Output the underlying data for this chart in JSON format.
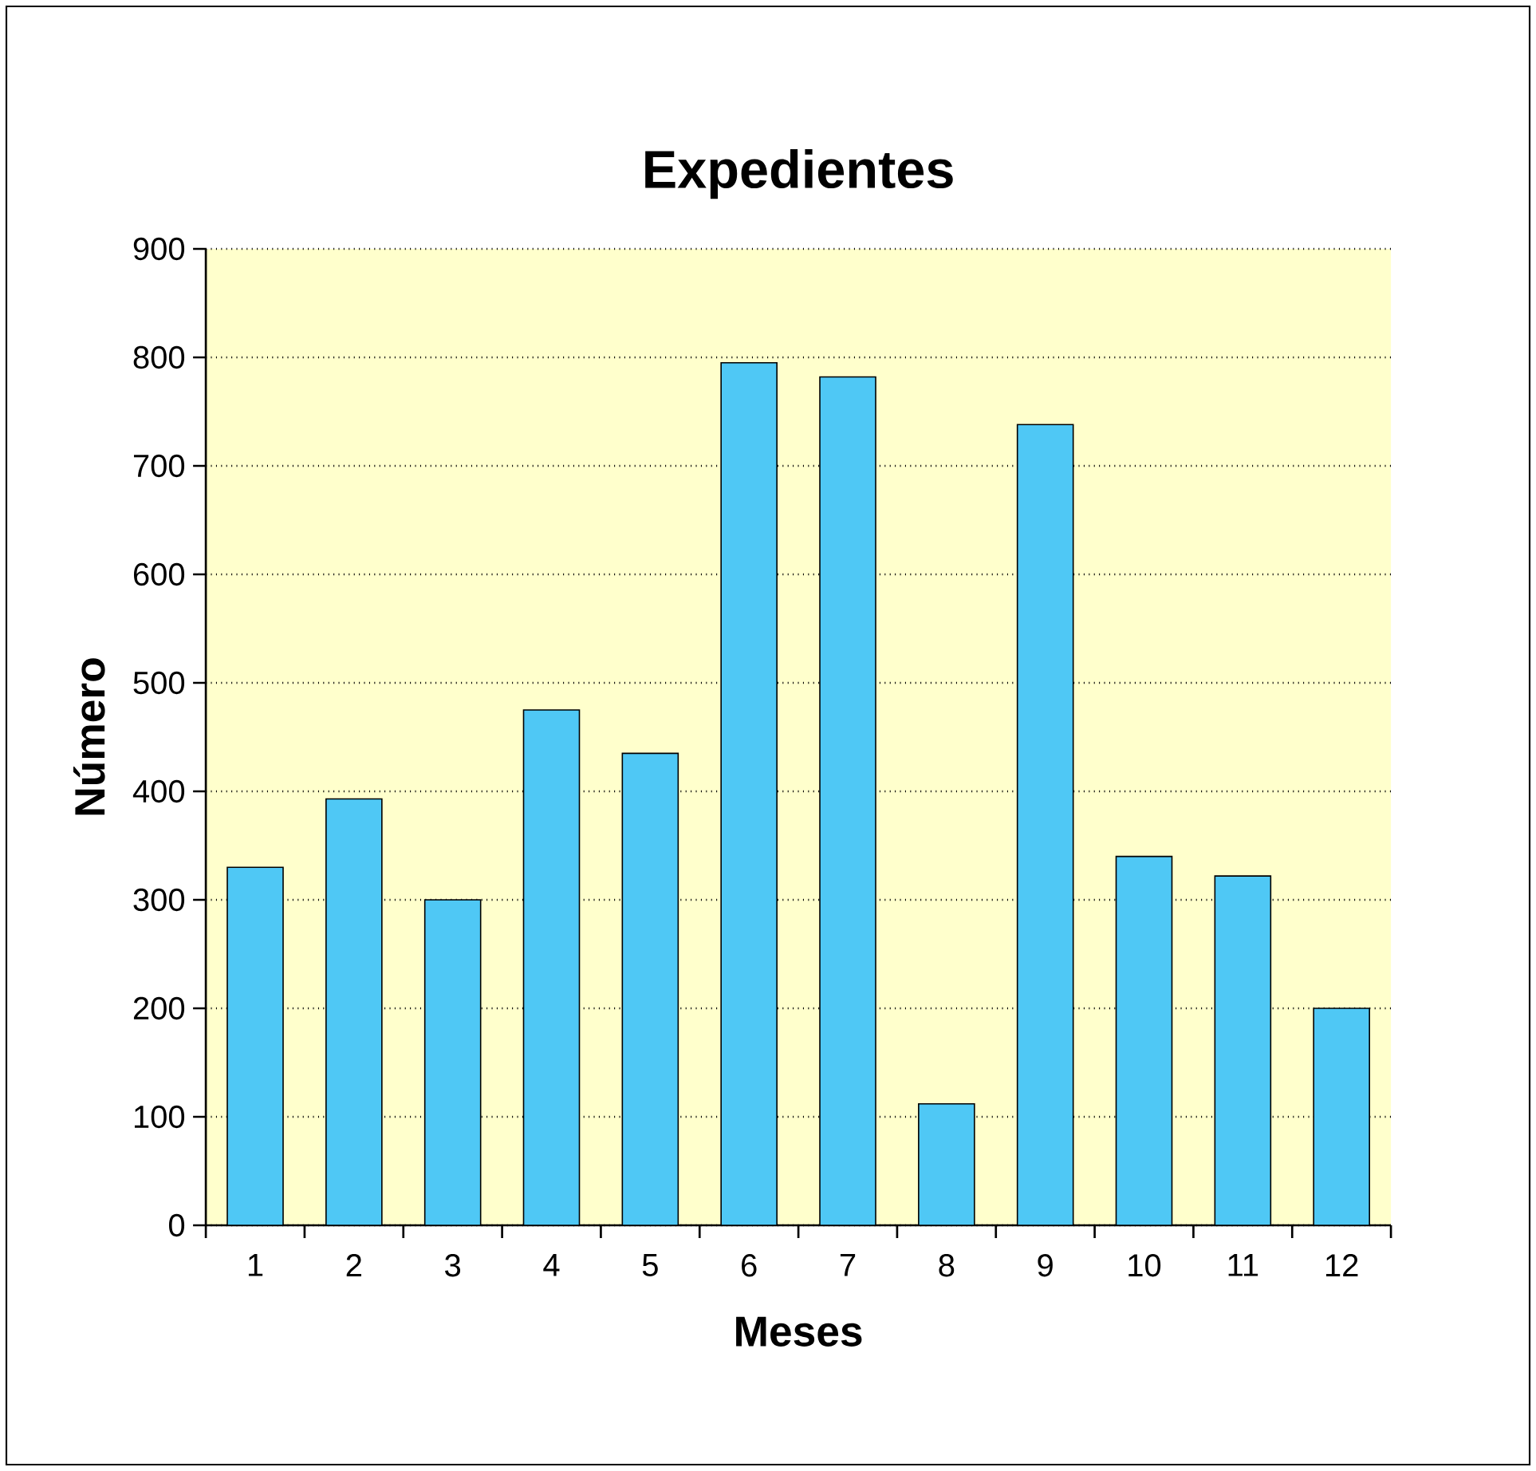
{
  "chart_data": {
    "type": "bar",
    "title": "Expedientes",
    "xlabel": "Meses",
    "ylabel": "Número",
    "categories": [
      "1",
      "2",
      "3",
      "4",
      "5",
      "6",
      "7",
      "8",
      "9",
      "10",
      "11",
      "12"
    ],
    "values": [
      330,
      393,
      300,
      475,
      435,
      795,
      782,
      112,
      738,
      340,
      322,
      200
    ],
    "color": "#4fc8f5",
    "ylim": [
      0,
      900
    ],
    "yticks": [
      0,
      100,
      200,
      300,
      400,
      500,
      600,
      700,
      800,
      900
    ],
    "grid": "y"
  }
}
